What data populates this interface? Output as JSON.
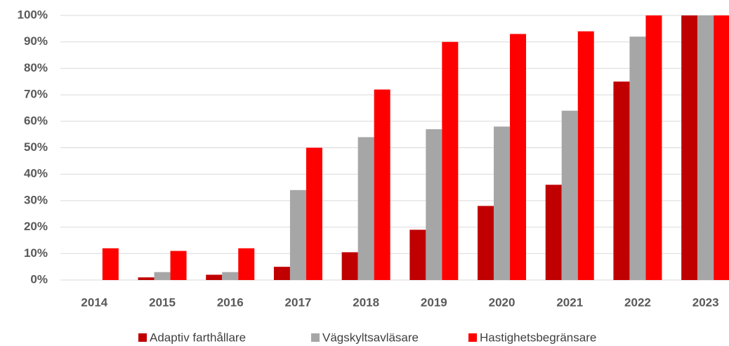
{
  "chart_data": {
    "type": "bar",
    "categories": [
      "2014",
      "2015",
      "2016",
      "2017",
      "2018",
      "2019",
      "2020",
      "2021",
      "2022",
      "2023"
    ],
    "series": [
      {
        "name": "Adaptiv farthållare",
        "color": "#c00000",
        "values": [
          0,
          1,
          2,
          5,
          10.5,
          19,
          28,
          36,
          75,
          100
        ]
      },
      {
        "name": "Vägskyltsavläsare",
        "color": "#a6a6a6",
        "values": [
          0,
          3,
          3,
          34,
          54,
          57,
          58,
          64,
          92,
          100
        ]
      },
      {
        "name": "Hastighetsbegränsare",
        "color": "#ff0000",
        "values": [
          12,
          11,
          12,
          50,
          72,
          90,
          93,
          94,
          100,
          100
        ]
      }
    ],
    "ylim": [
      0,
      100
    ],
    "yticks": [
      {
        "value": 0,
        "label": "0%"
      },
      {
        "value": 10,
        "label": "10%"
      },
      {
        "value": 20,
        "label": "20%"
      },
      {
        "value": 30,
        "label": "30%"
      },
      {
        "value": 40,
        "label": "40%"
      },
      {
        "value": 50,
        "label": "50%"
      },
      {
        "value": 60,
        "label": "60%"
      },
      {
        "value": 70,
        "label": "70%"
      },
      {
        "value": 80,
        "label": "80%"
      },
      {
        "value": 90,
        "label": "90%"
      },
      {
        "value": 100,
        "label": "100%"
      }
    ],
    "grid": true,
    "legend": "bottom"
  }
}
